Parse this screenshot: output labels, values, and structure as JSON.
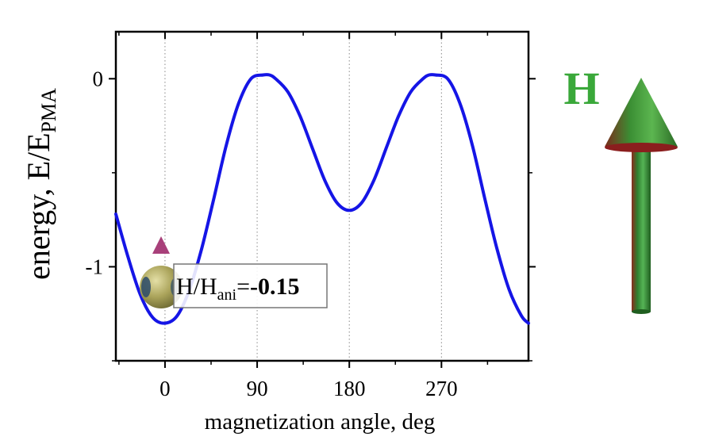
{
  "chart_data": {
    "type": "line",
    "xlabel": "magnetization angle, deg",
    "ylabel": {
      "main": "energy, E/E",
      "sub": "PMA"
    },
    "xlim": [
      -48,
      355
    ],
    "ylim": [
      -1.5,
      0.25
    ],
    "x_ticks": [
      0,
      90,
      180,
      270
    ],
    "y_ticks": [
      0,
      -1
    ],
    "grid": {
      "vertical_dotted": [
        0,
        90,
        180,
        270
      ]
    },
    "field_ratio": {
      "prefix": "H/H",
      "sub": "ani",
      "eq": "=",
      "value": "-0.15",
      "numeric": -0.15
    },
    "series": [
      {
        "color": "#1515e6",
        "x": [
          -48,
          -36,
          -24,
          -12,
          0,
          12,
          24,
          36,
          48,
          60,
          72,
          84,
          96,
          102,
          108,
          120,
          132,
          144,
          156,
          168,
          180,
          192,
          204,
          216,
          228,
          240,
          252,
          258,
          264,
          276,
          288,
          300,
          312,
          324,
          336,
          348,
          355
        ],
        "y": [
          -0.72,
          -0.95,
          -1.15,
          -1.27,
          -1.3,
          -1.26,
          -1.12,
          -0.9,
          -0.63,
          -0.35,
          -0.13,
          0.0,
          0.02,
          0.02,
          0.0,
          -0.07,
          -0.2,
          -0.37,
          -0.54,
          -0.66,
          -0.7,
          -0.66,
          -0.54,
          -0.37,
          -0.2,
          -0.07,
          0.0,
          0.02,
          0.02,
          0.0,
          -0.13,
          -0.35,
          -0.63,
          -0.9,
          -1.12,
          -1.26,
          -1.3
        ]
      }
    ]
  },
  "field_arrow": {
    "label": "H",
    "label_color": "#3aa83a",
    "shaft_color": "#2e8a2e",
    "tip_color": "#8b1e1e"
  },
  "spin_marker": {
    "sphere_color": "#a9a257",
    "arrow_color": "#a8407a",
    "angle_deg": 0
  },
  "colors": {
    "axis": "#000000",
    "curve": "#1515e6",
    "grid": "#888888"
  }
}
